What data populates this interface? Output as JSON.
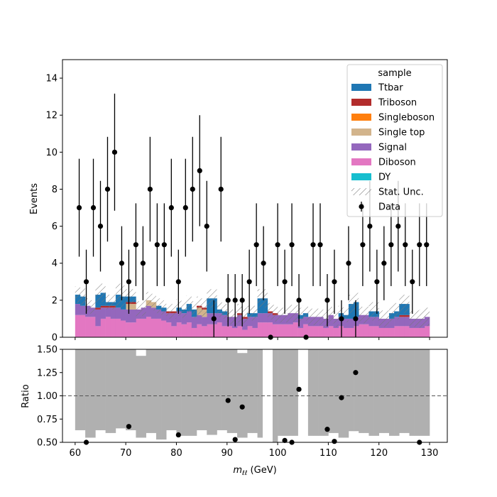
{
  "chart_data": {
    "type": "bar",
    "stacked": true,
    "legend_placement": "top-right",
    "x_range": [
      57.5,
      133.5
    ],
    "bin_edges_range": [
      60,
      130
    ],
    "n_bins": 35,
    "main": {
      "ylabel": "Events",
      "ylim": [
        0,
        15
      ],
      "yticks": [
        0,
        2,
        4,
        6,
        8,
        10,
        12,
        14
      ],
      "legend_title": "sample",
      "legend_entries": [
        {
          "label": "Ttbar",
          "color": "#1f77b4",
          "kind": "fill"
        },
        {
          "label": "Triboson",
          "color": "#b22c2c",
          "kind": "fill"
        },
        {
          "label": "Singleboson",
          "color": "#ff7f0e",
          "kind": "fill"
        },
        {
          "label": "Single top",
          "color": "#d2b48c",
          "kind": "fill"
        },
        {
          "label": "Signal",
          "color": "#9467bd",
          "kind": "fill"
        },
        {
          "label": "Diboson",
          "color": "#e377c2",
          "kind": "fill"
        },
        {
          "label": "DY",
          "color": "#17becf",
          "kind": "fill"
        },
        {
          "label": "Stat. Unc.",
          "color": "#777777",
          "kind": "hatch"
        },
        {
          "label": "Data",
          "color": "#000000",
          "kind": "errorbar"
        }
      ],
      "series": [
        {
          "name": "Diboson",
          "color": "#e377c2",
          "values": [
            1.2,
            1.2,
            1.1,
            1.1,
            0.6,
            1.0,
            1.1,
            1.0,
            1.0,
            0.9,
            0.8,
            0.8,
            1.0,
            1.0,
            1.1,
            1.0,
            1.0,
            0.9,
            0.8,
            0.6,
            0.8,
            0.7,
            0.8,
            0.5,
            0.7,
            0.6,
            0.7,
            0.7,
            0.8,
            0.6,
            0.6,
            0.5,
            0.6,
            0.4,
            0.6,
            0.5,
            0.8,
            0.8,
            0.8,
            0.7,
            0.7,
            0.7,
            0.7,
            0.8,
            0.5,
            0.7,
            0.6,
            0.6,
            0.6,
            0.5,
            0.6,
            0.5,
            0.6,
            0.5,
            0.5,
            0.6,
            0.7,
            0.7,
            0.6,
            0.6,
            0.5,
            0.5,
            0.5,
            0.6,
            0.6,
            0.6,
            0.5,
            0.5,
            0.5,
            0.6
          ]
        },
        {
          "name": "Signal",
          "color": "#9467bd",
          "values": [
            0.6,
            0.5,
            0.6,
            0.5,
            0.9,
            0.6,
            0.5,
            0.6,
            0.6,
            0.6,
            0.7,
            0.7,
            0.5,
            0.6,
            0.6,
            0.6,
            0.5,
            0.5,
            0.5,
            0.7,
            0.6,
            0.6,
            0.6,
            0.6,
            0.5,
            0.5,
            0.6,
            0.6,
            0.5,
            0.6,
            0.5,
            0.6,
            0.6,
            0.6,
            0.5,
            0.6,
            0.5,
            0.5,
            0.5,
            0.5,
            0.5,
            0.5,
            0.6,
            0.5,
            0.5,
            0.4,
            0.5,
            0.5,
            0.5,
            0.5,
            0.6,
            0.5,
            0.5,
            0.5,
            0.5,
            0.5,
            0.5,
            0.5,
            0.5,
            0.5,
            0.5,
            0.5,
            0.5,
            0.5,
            0.5,
            0.5,
            0.5,
            0.5,
            0.5,
            0.5
          ]
        },
        {
          "name": "Single top",
          "color": "#d2b48c",
          "values": [
            0,
            0,
            0,
            0,
            0,
            0,
            0,
            0,
            0,
            0,
            0.3,
            0.3,
            0,
            0,
            0.3,
            0.3,
            0,
            0,
            0,
            0,
            0,
            0,
            0,
            0,
            0.4,
            0.4,
            0,
            0,
            0,
            0,
            0,
            0,
            0,
            0,
            0,
            0,
            0,
            0,
            0,
            0,
            0,
            0,
            0,
            0,
            0,
            0,
            0,
            0,
            0,
            0,
            0,
            0,
            0,
            0,
            0,
            0,
            0,
            0,
            0,
            0,
            0,
            0,
            0,
            0,
            0,
            0,
            0,
            0,
            0,
            0
          ]
        },
        {
          "name": "Triboson",
          "color": "#b22c2c",
          "values": [
            0,
            0,
            0,
            0,
            0.1,
            0.1,
            0.1,
            0.1,
            0,
            0,
            0.1,
            0.1,
            0,
            0,
            0,
            0,
            0,
            0,
            0.1,
            0.1,
            0,
            0,
            0,
            0,
            0.1,
            0.1,
            0,
            0,
            0,
            0,
            0,
            0,
            0.1,
            0.1,
            0,
            0,
            0,
            0,
            0.1,
            0.1,
            0,
            0,
            0,
            0,
            0,
            0,
            0,
            0,
            0,
            0,
            0,
            0,
            0,
            0,
            0,
            0,
            0,
            0,
            0,
            0,
            0,
            0,
            0,
            0,
            0.1,
            0.1,
            0,
            0,
            0,
            0
          ]
        },
        {
          "name": "Ttbar",
          "color": "#1f77b4",
          "values": [
            0.5,
            0.5,
            0,
            0,
            0.7,
            0.7,
            0.2,
            0.2,
            0.7,
            0.7,
            0.3,
            0.3,
            0,
            0,
            0,
            0,
            0.2,
            0.2,
            0,
            0,
            0.2,
            0.2,
            0.4,
            0.4,
            0,
            0,
            0.8,
            0.8,
            0.2,
            0.2,
            0,
            0,
            0,
            0,
            0.2,
            0.2,
            0.8,
            0.8,
            0,
            0,
            0,
            0,
            0,
            0,
            0.2,
            0.2,
            0,
            0,
            0,
            0,
            0,
            0,
            0.2,
            0.2,
            0.8,
            0.8,
            0,
            0,
            0.3,
            0.3,
            0,
            0,
            0.3,
            0.3,
            0.6,
            0.6,
            0,
            0,
            0,
            0
          ]
        }
      ],
      "stat_unc": [
        0.45,
        0.45,
        0.4,
        0.4,
        0.5,
        0.5,
        0.4,
        0.4,
        0.6,
        0.6,
        0.4,
        0.4,
        0.45,
        0.45,
        0.45,
        0.45,
        0.4,
        0.4,
        0.4,
        0.4,
        0.45,
        0.45,
        0.45,
        0.45,
        0.5,
        0.5,
        0.5,
        0.5,
        0.4,
        0.4,
        0.4,
        0.4,
        0.5,
        0.5,
        0.4,
        0.4,
        0.5,
        0.5,
        0.45,
        0.45,
        0.4,
        0.4,
        0.45,
        0.45,
        0.4,
        0.4,
        0.45,
        0.45,
        0.45,
        0.45,
        0.45,
        0.45,
        0.4,
        0.4,
        0.5,
        0.5,
        0.45,
        0.45,
        0.5,
        0.5,
        0.45,
        0.45,
        0.45,
        0.45,
        0.5,
        0.5,
        0.45,
        0.45,
        0.5,
        0.5
      ],
      "data": {
        "x": [
          60.8,
          62.2,
          63.6,
          65.0,
          66.4,
          67.8,
          69.2,
          70.6,
          72.0,
          73.4,
          74.8,
          76.2,
          77.6,
          79.0,
          80.4,
          81.8,
          83.2,
          84.6,
          86.0,
          87.4,
          88.8,
          90.2,
          91.6,
          93.0,
          94.4,
          95.8,
          97.2,
          98.6,
          100.0,
          101.4,
          102.8,
          104.2,
          105.6,
          107.0,
          108.4,
          109.8,
          111.2,
          112.6,
          114.0,
          115.4,
          116.8,
          118.2,
          119.6,
          121.0,
          122.4,
          123.8,
          125.2,
          126.6,
          128.0,
          129.4
        ],
        "y": [
          7,
          3,
          7,
          6,
          8,
          10,
          4,
          3,
          5,
          4,
          8,
          5,
          5,
          7,
          3,
          7,
          8,
          9,
          6,
          1,
          8,
          2,
          2,
          2,
          3,
          5,
          4,
          0,
          5,
          3,
          5,
          2,
          0,
          5,
          5,
          2,
          3,
          1,
          4,
          1,
          5,
          6,
          3,
          4,
          5,
          6,
          5,
          3,
          5,
          5
        ]
      }
    },
    "ratio": {
      "ylabel": "Ratio",
      "ylim": [
        0.5,
        1.5
      ],
      "yticks": [
        "0.50",
        "0.75",
        "1.00",
        "1.25",
        "1.50"
      ],
      "reference_line": 1.0,
      "band_lower": [
        0.63,
        0.63,
        0.55,
        0.55,
        0.63,
        0.63,
        0.6,
        0.6,
        0.65,
        0.65,
        0.63,
        0.63,
        0.55,
        0.55,
        0.6,
        0.6,
        0.53,
        0.53,
        0.63,
        0.63,
        0.57,
        0.57,
        0.57,
        0.57,
        0.63,
        0.63,
        0.58,
        0.58,
        0.63,
        0.63,
        0.6,
        0.6,
        0.55,
        0.55,
        0.6,
        0.6,
        0.55,
        0.55,
        0.5,
        0.5,
        0.57,
        0.57,
        0.57,
        0.57,
        0.57,
        0.57,
        0.57,
        0.57,
        0.57,
        0.57,
        0.6,
        0.6,
        0.55,
        0.55,
        0.62,
        0.62,
        0.6,
        0.6,
        0.57,
        0.57,
        0.6,
        0.6,
        0.57,
        0.57,
        0.6,
        0.6,
        0.57,
        0.57,
        0.57,
        0.57
      ],
      "band_upper": [
        1.5,
        1.5,
        1.5,
        1.5,
        1.5,
        1.5,
        1.5,
        1.5,
        1.5,
        1.5,
        1.5,
        1.5,
        1.43,
        1.43,
        1.5,
        1.5,
        1.5,
        1.5,
        1.5,
        1.5,
        1.5,
        1.5,
        1.5,
        1.5,
        1.5,
        1.5,
        1.5,
        1.5,
        1.5,
        1.5,
        1.5,
        1.5,
        1.46,
        1.46,
        1.5,
        1.5,
        1.5,
        1.5,
        1.5,
        1.5,
        1.5,
        1.5,
        1.5,
        1.5,
        1.5,
        1.5,
        1.5,
        1.5,
        1.5,
        1.5,
        1.5,
        1.5,
        1.5,
        1.5,
        1.5,
        1.5,
        1.5,
        1.5,
        1.5,
        1.5,
        1.5,
        1.5,
        1.5,
        1.5,
        1.5,
        1.5,
        1.5,
        1.5,
        1.5,
        1.5
      ],
      "gaps": [
        [
          96.5,
          99.5
        ],
        [
          103.5,
          106.5
        ]
      ],
      "points": {
        "x": [
          62.2,
          70.6,
          80.4,
          90.2,
          91.6,
          93.0,
          101.4,
          102.8,
          104.2,
          109.8,
          111.2,
          112.6,
          115.4,
          128.0
        ],
        "y": [
          0.5,
          0.67,
          0.58,
          0.95,
          0.53,
          0.88,
          0.52,
          0.5,
          1.07,
          0.64,
          0.51,
          0.98,
          1.25,
          0.5
        ]
      }
    },
    "xlabel": "m_{ℓℓ} (GeV)",
    "xlabel_main": "m",
    "xlabel_sub": "ℓℓ",
    "xlabel_unit": " (GeV)",
    "xticks": [
      60,
      70,
      80,
      90,
      100,
      110,
      120,
      130
    ]
  }
}
